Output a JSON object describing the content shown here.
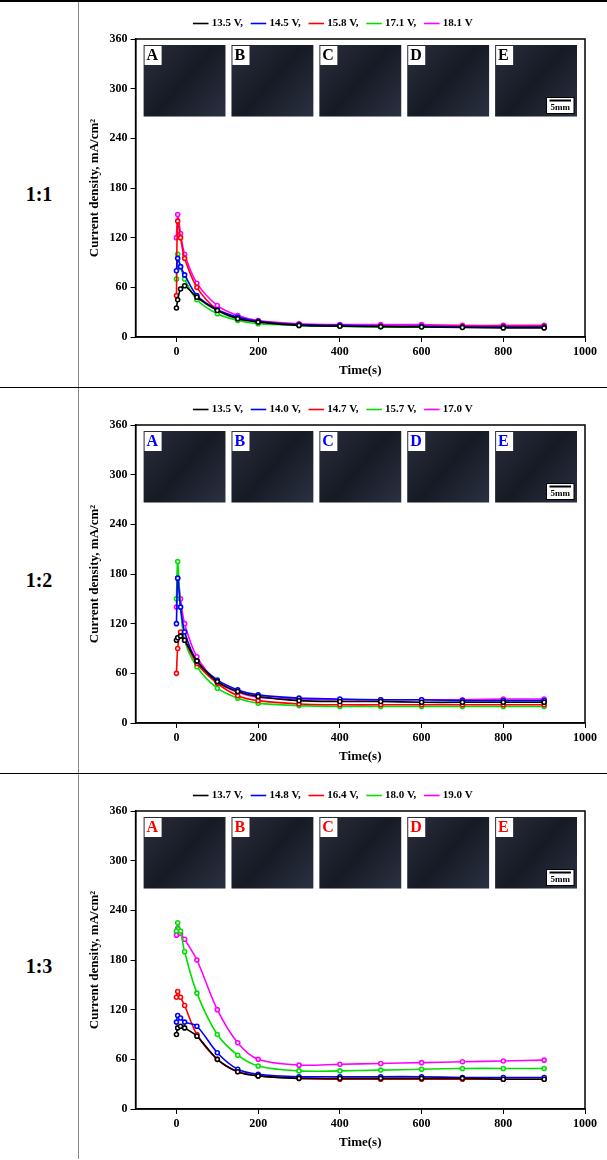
{
  "chart_data": [
    {
      "type": "line",
      "title": "1:1",
      "xlabel": "Time(s)",
      "ylabel": "Current density, mA/cm²",
      "x": [
        0,
        3,
        10,
        20,
        50,
        100,
        150,
        200,
        300,
        400,
        500,
        600,
        700,
        800,
        900
      ],
      "series": [
        {
          "name": "13.5 V,",
          "color": "#000000",
          "values": [
            35,
            45,
            58,
            62,
            48,
            32,
            22,
            18,
            14,
            13,
            12.5,
            12,
            11.5,
            11,
            11
          ]
        },
        {
          "name": "14.5 V,",
          "color": "#0000ff",
          "values": [
            80,
            95,
            85,
            75,
            50,
            33,
            24,
            19,
            15,
            14,
            13,
            13,
            12,
            12,
            12
          ]
        },
        {
          "name": "15.8 V,",
          "color": "#ff0000",
          "values": [
            50,
            140,
            120,
            95,
            60,
            33,
            23,
            19,
            15,
            14,
            13,
            13,
            13,
            13,
            13
          ]
        },
        {
          "name": "17.1 V,",
          "color": "#00e000",
          "values": [
            70,
            100,
            85,
            70,
            45,
            28,
            20,
            16,
            14,
            13,
            12,
            12,
            12,
            12,
            12
          ]
        },
        {
          "name": "18.1 V",
          "color": "#ff00ff",
          "values": [
            120,
            148,
            125,
            100,
            65,
            38,
            26,
            20,
            16,
            15,
            15,
            15,
            14,
            14,
            14
          ]
        }
      ],
      "xlim": [
        -100,
        1000
      ],
      "xticks": [
        0,
        200,
        400,
        600,
        800,
        1000
      ],
      "ylim": [
        0,
        360
      ],
      "yticks": [
        0,
        60,
        120,
        180,
        240,
        300,
        360
      ],
      "grid": false,
      "legend": "top",
      "marker": "circle",
      "line_style": "solid",
      "insets": {
        "labels": [
          "A",
          "B",
          "C",
          "D",
          "E"
        ],
        "color": "#000000",
        "scale_bar": "5mm"
      }
    },
    {
      "type": "line",
      "title": "1:2",
      "xlabel": "Time(s)",
      "ylabel": "Current density, mA/cm²",
      "x": [
        0,
        3,
        10,
        20,
        50,
        100,
        150,
        200,
        300,
        400,
        500,
        600,
        700,
        800,
        900
      ],
      "series": [
        {
          "name": "13.5 V,",
          "color": "#000000",
          "values": [
            100,
            103,
            105,
            100,
            75,
            50,
            38,
            32,
            27,
            26,
            26,
            25,
            25,
            25,
            25
          ]
        },
        {
          "name": "14.0 V,",
          "color": "#0000ff",
          "values": [
            120,
            175,
            140,
            110,
            75,
            52,
            40,
            34,
            30,
            29,
            28,
            28,
            27,
            27,
            27
          ]
        },
        {
          "name": "14.7 V,",
          "color": "#ff0000",
          "values": [
            60,
            90,
            110,
            100,
            72,
            48,
            33,
            27,
            23,
            22,
            22,
            22,
            22,
            22,
            22
          ]
        },
        {
          "name": "15.7 V,",
          "color": "#00e000",
          "values": [
            150,
            195,
            140,
            100,
            68,
            42,
            30,
            24,
            21,
            20,
            20,
            20,
            20,
            20,
            20
          ]
        },
        {
          "name": "17.0 V",
          "color": "#ff00ff",
          "values": [
            140,
            175,
            150,
            120,
            80,
            50,
            37,
            31,
            29,
            28,
            28,
            28,
            28,
            29,
            29
          ]
        }
      ],
      "xlim": [
        -100,
        1000
      ],
      "xticks": [
        0,
        200,
        400,
        600,
        800,
        1000
      ],
      "ylim": [
        0,
        360
      ],
      "yticks": [
        0,
        60,
        120,
        180,
        240,
        300,
        360
      ],
      "grid": false,
      "legend": "top",
      "marker": "circle",
      "line_style": "solid",
      "insets": {
        "labels": [
          "A",
          "B",
          "C",
          "D",
          "E"
        ],
        "color": "#0000ff",
        "scale_bar": "5mm"
      }
    },
    {
      "type": "line",
      "title": "1:3",
      "xlabel": "Time(s)",
      "ylabel": "Current density, mA/cm²",
      "x": [
        0,
        3,
        10,
        20,
        50,
        100,
        150,
        200,
        300,
        400,
        500,
        600,
        700,
        800,
        900
      ],
      "series": [
        {
          "name": "13.7 V,",
          "color": "#000000",
          "values": [
            90,
            98,
            100,
            98,
            88,
            60,
            45,
            40,
            37,
            37,
            37,
            37,
            37,
            36,
            36
          ]
        },
        {
          "name": "14.8 V,",
          "color": "#0000ff",
          "values": [
            105,
            113,
            110,
            105,
            100,
            68,
            48,
            42,
            39,
            39,
            39,
            39,
            38,
            38,
            38
          ]
        },
        {
          "name": "16.4 V,",
          "color": "#ff0000",
          "values": [
            135,
            142,
            135,
            125,
            90,
            60,
            45,
            40,
            37,
            36,
            36,
            36,
            36,
            36,
            36
          ]
        },
        {
          "name": "18.0 V,",
          "color": "#00e000",
          "values": [
            215,
            225,
            215,
            190,
            140,
            90,
            65,
            52,
            46,
            46,
            47,
            48,
            49,
            49,
            49
          ]
        },
        {
          "name": "19.0 V",
          "color": "#ff00ff",
          "values": [
            210,
            218,
            212,
            205,
            180,
            120,
            80,
            60,
            53,
            54,
            55,
            56,
            57,
            58,
            59
          ]
        }
      ],
      "xlim": [
        -100,
        1000
      ],
      "xticks": [
        0,
        200,
        400,
        600,
        800,
        1000
      ],
      "ylim": [
        0,
        360
      ],
      "yticks": [
        0,
        60,
        120,
        180,
        240,
        300,
        360
      ],
      "grid": false,
      "legend": "top",
      "marker": "circle",
      "line_style": "solid",
      "insets": {
        "labels": [
          "A",
          "B",
          "C",
          "D",
          "E"
        ],
        "color": "#ff0000",
        "scale_bar": "5mm"
      }
    }
  ]
}
